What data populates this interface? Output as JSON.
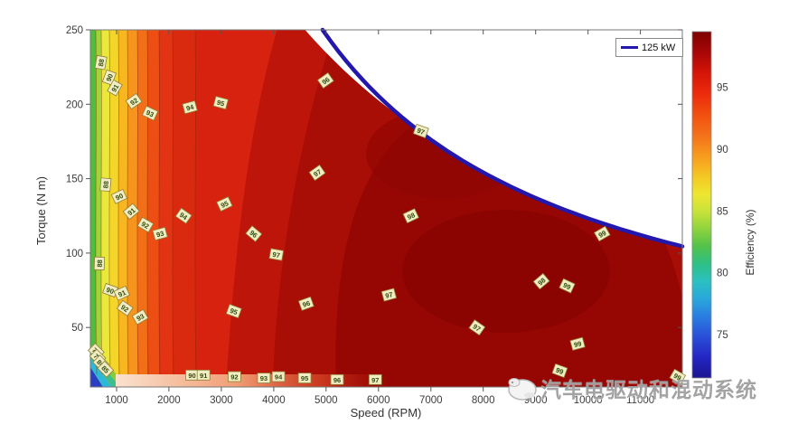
{
  "palette": {
    "power_curve": "#2317AE",
    "plot_base_red": "#D7220F",
    "dark_reds": [
      "#BE150B",
      "#A80D06",
      "#960704",
      "#8B0402"
    ],
    "left_bands": [
      [
        "#4FBE3C",
        6
      ],
      [
        "#9FD43A",
        6
      ],
      [
        "#EAE93B",
        9
      ],
      [
        "#F6D52B",
        10
      ],
      [
        "#F8B621",
        10
      ],
      [
        "#F7941D",
        11
      ],
      [
        "#F26F17",
        11
      ],
      [
        "#EC4E13",
        13
      ],
      [
        "#E23414",
        15
      ],
      [
        "#D92A10",
        25
      ]
    ],
    "corner_bands": [
      "#2B3FC4",
      "#2FB7D8",
      "#3DBE8B",
      "#86CC3A"
    ],
    "contour_label_bg": "#F1ECC3",
    "contour_label_border": "#8F8136",
    "contour_label_text": "#314D0F",
    "axis_text": "#3C3C3C"
  },
  "chart_data": {
    "type": "heatmap",
    "subtype": "filled-contour-motor-efficiency-map",
    "title": "",
    "xlabel": "Speed (RPM)",
    "ylabel": "Torque (N m)",
    "x_range_rpm": [
      500,
      11800
    ],
    "y_range_nm": [
      10,
      250
    ],
    "x_ticks": [
      1000,
      2000,
      3000,
      4000,
      5000,
      6000,
      7000,
      8000,
      9000,
      10000,
      11000
    ],
    "y_ticks": [
      50,
      100,
      150,
      200,
      250
    ],
    "grid": false,
    "colormap": "jet",
    "contour_levels": [
      70,
      75,
      80,
      85,
      88,
      90,
      91,
      92,
      93,
      94,
      95,
      96,
      97,
      98,
      99
    ],
    "max_efficiency_percent": 99,
    "legend": {
      "position": "top-right",
      "entries": [
        {
          "label": "125 kW",
          "color": "#2317AE"
        }
      ]
    },
    "power_curve": {
      "label": "125 kW",
      "power_kw": 125,
      "color": "#2317AE",
      "sample_points_rpm_nm": [
        [
          4775,
          250
        ],
        [
          5500,
          217
        ],
        [
          6000,
          199
        ],
        [
          7000,
          171
        ],
        [
          8000,
          149
        ],
        [
          9000,
          133
        ],
        [
          10000,
          119
        ],
        [
          11000,
          109
        ],
        [
          11800,
          101
        ]
      ]
    },
    "colorbar": {
      "label": "Efficiency (%)",
      "ticks": [
        95,
        90,
        85,
        80,
        75
      ],
      "range": [
        71.5,
        99.5
      ]
    },
    "contour_labels": [
      [
        88,
        700,
        228,
        -80
      ],
      [
        90,
        860,
        218,
        -70
      ],
      [
        91,
        965,
        211,
        -60
      ],
      [
        92,
        1330,
        202,
        -35
      ],
      [
        93,
        1640,
        194,
        25
      ],
      [
        94,
        2400,
        198,
        -15
      ],
      [
        95,
        2990,
        201,
        15
      ],
      [
        96,
        4990,
        216,
        -35
      ],
      [
        88,
        790,
        146,
        -85
      ],
      [
        90,
        1050,
        138,
        -25
      ],
      [
        91,
        1280,
        128,
        -40
      ],
      [
        92,
        1550,
        119,
        30
      ],
      [
        93,
        1830,
        113,
        -15
      ],
      [
        94,
        2280,
        125,
        35
      ],
      [
        95,
        3060,
        133,
        -25
      ],
      [
        96,
        3620,
        113,
        40
      ],
      [
        97,
        4050,
        99,
        10
      ],
      [
        88,
        670,
        93,
        -88
      ],
      [
        90,
        880,
        75,
        20
      ],
      [
        91,
        1100,
        73,
        -25
      ],
      [
        92,
        1160,
        63,
        35
      ],
      [
        93,
        1450,
        57,
        -30
      ],
      [
        95,
        3240,
        61,
        20
      ],
      [
        96,
        4620,
        66,
        -20
      ],
      [
        97,
        6200,
        72,
        -15
      ],
      [
        97,
        7880,
        50,
        35
      ],
      [
        98,
        9110,
        81,
        -40
      ],
      [
        99,
        9600,
        78,
        25
      ],
      [
        99,
        9800,
        39,
        -15
      ],
      [
        99,
        9460,
        21,
        20
      ],
      [
        99,
        10270,
        113,
        -30
      ],
      [
        99,
        11710,
        17,
        30
      ],
      [
        98,
        6620,
        125,
        -25
      ],
      [
        97,
        4830,
        154,
        -35
      ],
      [
        97,
        6810,
        182,
        20
      ],
      [
        90,
        2440,
        18,
        0
      ],
      [
        91,
        2660,
        18,
        0
      ],
      [
        92,
        3250,
        17,
        0
      ],
      [
        93,
        3810,
        16,
        0
      ],
      [
        94,
        4090,
        17,
        0
      ],
      [
        95,
        4590,
        16,
        0
      ],
      [
        96,
        5210,
        15,
        0
      ],
      [
        97,
        5940,
        15,
        0
      ],
      [
        70,
        610,
        34,
        45
      ],
      [
        75,
        640,
        30,
        45
      ],
      [
        80,
        700,
        26,
        45
      ],
      [
        85,
        790,
        22,
        45
      ]
    ]
  },
  "watermark": {
    "text": "汽车电驱动和混动系统"
  }
}
